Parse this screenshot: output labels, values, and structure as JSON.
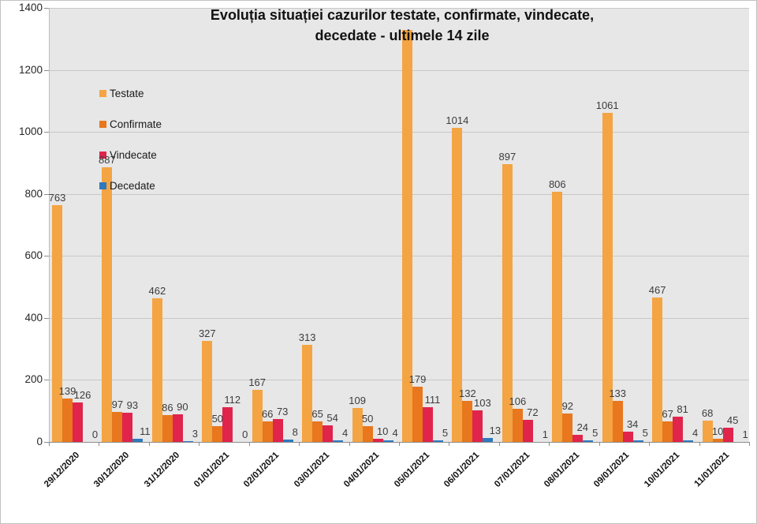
{
  "chart_data": {
    "type": "bar",
    "title_lines": [
      "Evoluția situației cazurilor testate, confirmate, vindecate,",
      "decedate -  ultimele 14 zile"
    ],
    "categories": [
      "29/12/2020",
      "30/12/2020",
      "31/12/2020",
      "01/01/2021",
      "02/01/2021",
      "03/01/2021",
      "04/01/2021",
      "05/01/2021",
      "06/01/2021",
      "07/01/2021",
      "08/01/2021",
      "09/01/2021",
      "10/01/2021",
      "11/01/2021"
    ],
    "series": [
      {
        "name": "Testate",
        "color": "#F4A442",
        "values": [
          763,
          887,
          462,
          327,
          167,
          313,
          109,
          1329,
          1014,
          897,
          806,
          1061,
          467,
          68
        ],
        "labels": [
          "763",
          "887",
          "462",
          "327",
          "167",
          "313",
          "109",
          "",
          "1014",
          "897",
          "806",
          "1061",
          "467",
          "68"
        ]
      },
      {
        "name": "Confirmate",
        "color": "#E8771E",
        "values": [
          139,
          97,
          86,
          50,
          66,
          65,
          50,
          179,
          132,
          106,
          92,
          133,
          67,
          10
        ],
        "labels": [
          "139",
          "97",
          "86",
          "50",
          "66",
          "65",
          "50",
          "179",
          "132",
          "106",
          "92",
          "133",
          "67",
          "10"
        ]
      },
      {
        "name": "Vindecate",
        "color": "#E0244C",
        "values": [
          126,
          93,
          90,
          112,
          73,
          54,
          10,
          111,
          103,
          72,
          24,
          34,
          81,
          45
        ],
        "labels": [
          "126",
          "93",
          "90",
          "112",
          "73",
          "54",
          "10",
          "111",
          "103",
          "72",
          "24",
          "34",
          "81",
          "45"
        ]
      },
      {
        "name": "Decedate",
        "color": "#2E79BD",
        "values": [
          0,
          11,
          3,
          0,
          8,
          4,
          4,
          5,
          13,
          1,
          5,
          5,
          4,
          1
        ],
        "labels": [
          "0",
          "11",
          "3",
          "0",
          "8",
          "4",
          "4",
          "5",
          "13",
          "1",
          "5",
          "5",
          "4",
          "1"
        ]
      }
    ],
    "ylim": [
      0,
      1400
    ],
    "yticks": [
      0,
      200,
      400,
      600,
      800,
      1000,
      1200,
      1400
    ],
    "grid": true,
    "legend_position": "inside-top-left"
  },
  "colors": {
    "page_bg": "#ffffff",
    "plot_bg": "#e7e7e7",
    "grid": "#c7c7c7",
    "axis": "#8c8c8c",
    "data_label": "#3c3c3c",
    "title": "#111111"
  }
}
